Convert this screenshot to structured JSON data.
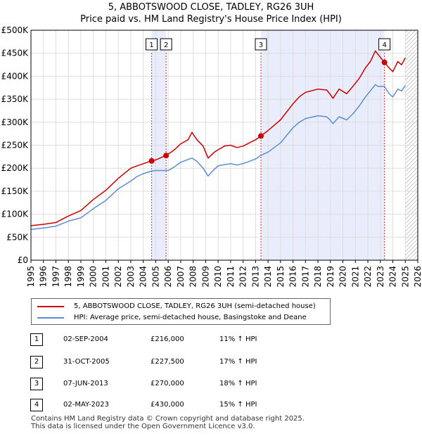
{
  "chart_data": {
    "type": "line",
    "title": "5, ABBOTSWOOD CLOSE, TADLEY, RG26 3UH",
    "subtitle": "Price paid vs. HM Land Registry's House Price Index (HPI)",
    "y_tick_labels": [
      "£0",
      "£50K",
      "£100K",
      "£150K",
      "£200K",
      "£250K",
      "£300K",
      "£350K",
      "£400K",
      "£450K",
      "£500K"
    ],
    "ylim": [
      0,
      500000
    ],
    "x_tick_labels": [
      "1995",
      "1996",
      "1997",
      "1998",
      "1999",
      "2000",
      "2001",
      "2002",
      "2003",
      "2004",
      "2005",
      "2006",
      "2007",
      "2008",
      "2009",
      "2010",
      "2011",
      "2012",
      "2013",
      "2014",
      "2015",
      "2016",
      "2017",
      "2018",
      "2019",
      "2020",
      "2021",
      "2022",
      "2023",
      "2024",
      "2025",
      "2026"
    ],
    "xlim": [
      1995,
      2026
    ],
    "grid": true,
    "series": [
      {
        "name": "5, ABBOTSWOOD CLOSE, TADLEY, RG26 3UH (semi-detached house)",
        "color": "#cc0000",
        "points": [
          [
            1995,
            75000
          ],
          [
            1996,
            78000
          ],
          [
            1997,
            82000
          ],
          [
            1998,
            96000
          ],
          [
            1999,
            108000
          ],
          [
            2000,
            132000
          ],
          [
            2001,
            152000
          ],
          [
            2002,
            178000
          ],
          [
            2003,
            200000
          ],
          [
            2003.5,
            205000
          ],
          [
            2004.67,
            216000
          ],
          [
            2005,
            218000
          ],
          [
            2005.83,
            227500
          ],
          [
            2006.5,
            240000
          ],
          [
            2007,
            253000
          ],
          [
            2007.6,
            262000
          ],
          [
            2007.9,
            278000
          ],
          [
            2008.3,
            262000
          ],
          [
            2008.8,
            248000
          ],
          [
            2009.2,
            222000
          ],
          [
            2009.7,
            235000
          ],
          [
            2010,
            240000
          ],
          [
            2010.5,
            248000
          ],
          [
            2011,
            250000
          ],
          [
            2011.5,
            245000
          ],
          [
            2012,
            248000
          ],
          [
            2012.5,
            255000
          ],
          [
            2013,
            262000
          ],
          [
            2013.43,
            270000
          ],
          [
            2014,
            282000
          ],
          [
            2015,
            305000
          ],
          [
            2016,
            340000
          ],
          [
            2016.5,
            355000
          ],
          [
            2017,
            365000
          ],
          [
            2018,
            372000
          ],
          [
            2018.7,
            370000
          ],
          [
            2019,
            360000
          ],
          [
            2019.2,
            352000
          ],
          [
            2019.7,
            372000
          ],
          [
            2020.3,
            362000
          ],
          [
            2020.8,
            378000
          ],
          [
            2021.3,
            395000
          ],
          [
            2021.8,
            418000
          ],
          [
            2022.2,
            432000
          ],
          [
            2022.6,
            455000
          ],
          [
            2022.8,
            448000
          ],
          [
            2023.33,
            430000
          ],
          [
            2023.7,
            418000
          ],
          [
            2024,
            410000
          ],
          [
            2024.4,
            432000
          ],
          [
            2024.7,
            425000
          ],
          [
            2025,
            440000
          ]
        ]
      },
      {
        "name": "HPI: Average price, semi-detached house, Basingstoke and Deane",
        "color": "#5b8ed1",
        "points": [
          [
            1995,
            67000
          ],
          [
            1996,
            70000
          ],
          [
            1997,
            74000
          ],
          [
            1998,
            85000
          ],
          [
            1999,
            92000
          ],
          [
            2000,
            112000
          ],
          [
            2001,
            130000
          ],
          [
            2002,
            155000
          ],
          [
            2003,
            172000
          ],
          [
            2003.5,
            182000
          ],
          [
            2004,
            188000
          ],
          [
            2004.67,
            194000
          ],
          [
            2005,
            195000
          ],
          [
            2006,
            195000
          ],
          [
            2006.5,
            203000
          ],
          [
            2007,
            213000
          ],
          [
            2007.9,
            222000
          ],
          [
            2008.3,
            215000
          ],
          [
            2008.8,
            200000
          ],
          [
            2009.2,
            183000
          ],
          [
            2009.7,
            198000
          ],
          [
            2010,
            205000
          ],
          [
            2010.5,
            208000
          ],
          [
            2011,
            210000
          ],
          [
            2011.5,
            207000
          ],
          [
            2012,
            210000
          ],
          [
            2012.5,
            215000
          ],
          [
            2013,
            220000
          ],
          [
            2013.43,
            228000
          ],
          [
            2014,
            235000
          ],
          [
            2015,
            255000
          ],
          [
            2016,
            288000
          ],
          [
            2016.5,
            300000
          ],
          [
            2017,
            308000
          ],
          [
            2018,
            314000
          ],
          [
            2018.7,
            312000
          ],
          [
            2019,
            304000
          ],
          [
            2019.2,
            297000
          ],
          [
            2019.7,
            312000
          ],
          [
            2020.3,
            305000
          ],
          [
            2020.8,
            318000
          ],
          [
            2021.3,
            335000
          ],
          [
            2021.8,
            355000
          ],
          [
            2022.2,
            368000
          ],
          [
            2022.6,
            382000
          ],
          [
            2022.8,
            378000
          ],
          [
            2023.33,
            378000
          ],
          [
            2023.7,
            362000
          ],
          [
            2024,
            355000
          ],
          [
            2024.4,
            372000
          ],
          [
            2024.7,
            368000
          ],
          [
            2025,
            380000
          ]
        ]
      }
    ],
    "markers": [
      {
        "label": "1",
        "x": 2004.67,
        "y": 216000
      },
      {
        "label": "2",
        "x": 2005.83,
        "y": 227500
      },
      {
        "label": "3",
        "x": 2013.43,
        "y": 270000
      },
      {
        "label": "4",
        "x": 2023.33,
        "y": 430000
      }
    ],
    "shaded_ranges": [
      [
        2004.67,
        2005.83
      ],
      [
        2013.43,
        2023.33
      ]
    ],
    "hatched_range": [
      2025.0,
      2026.0
    ]
  },
  "legend": {
    "property_label": "5, ABBOTSWOOD CLOSE, TADLEY, RG26 3UH (semi-detached house)",
    "hpi_label": "HPI: Average price, semi-detached house, Basingstoke and Deane"
  },
  "transactions": [
    {
      "num": "1",
      "date": "02-SEP-2004",
      "price": "£216,000",
      "hpi": "11% ↑ HPI"
    },
    {
      "num": "2",
      "date": "31-OCT-2005",
      "price": "£227,500",
      "hpi": "17% ↑ HPI"
    },
    {
      "num": "3",
      "date": "07-JUN-2013",
      "price": "£270,000",
      "hpi": "18% ↑ HPI"
    },
    {
      "num": "4",
      "date": "02-MAY-2023",
      "price": "£430,000",
      "hpi": "15% ↑ HPI"
    }
  ],
  "footer": {
    "line1": "Contains HM Land Registry data © Crown copyright and database right 2025.",
    "line2": "This data is licensed under the Open Government Licence v3.0."
  }
}
